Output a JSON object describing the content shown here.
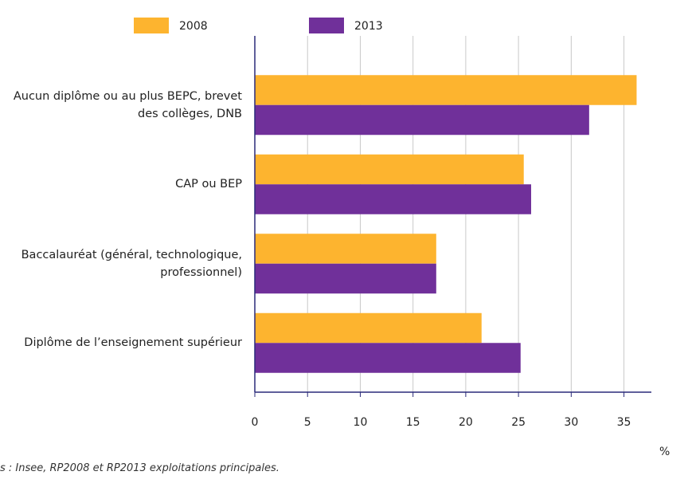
{
  "chart_data": {
    "type": "hbar",
    "categories": [
      "Aucun diplôme ou au plus BEPC, brevet des collèges, DNB",
      "CAP ou BEP",
      "Baccalauréat (général, technologique, professionnel)",
      "Diplôme de l’enseignement supérieur"
    ],
    "series": [
      {
        "name": "2008",
        "color": "#fdb42f",
        "values": [
          36.2,
          25.5,
          17.2,
          21.5
        ]
      },
      {
        "name": "2013",
        "color": "#70309a",
        "values": [
          31.7,
          26.2,
          17.2,
          25.2
        ]
      }
    ],
    "xlim": [
      0,
      37.6
    ],
    "xticks": [
      0,
      5,
      10,
      15,
      20,
      25,
      30,
      35
    ],
    "grid": true,
    "x_unit": "%",
    "source": "s : Insee, RP2008 et RP2013 exploitations principales."
  }
}
